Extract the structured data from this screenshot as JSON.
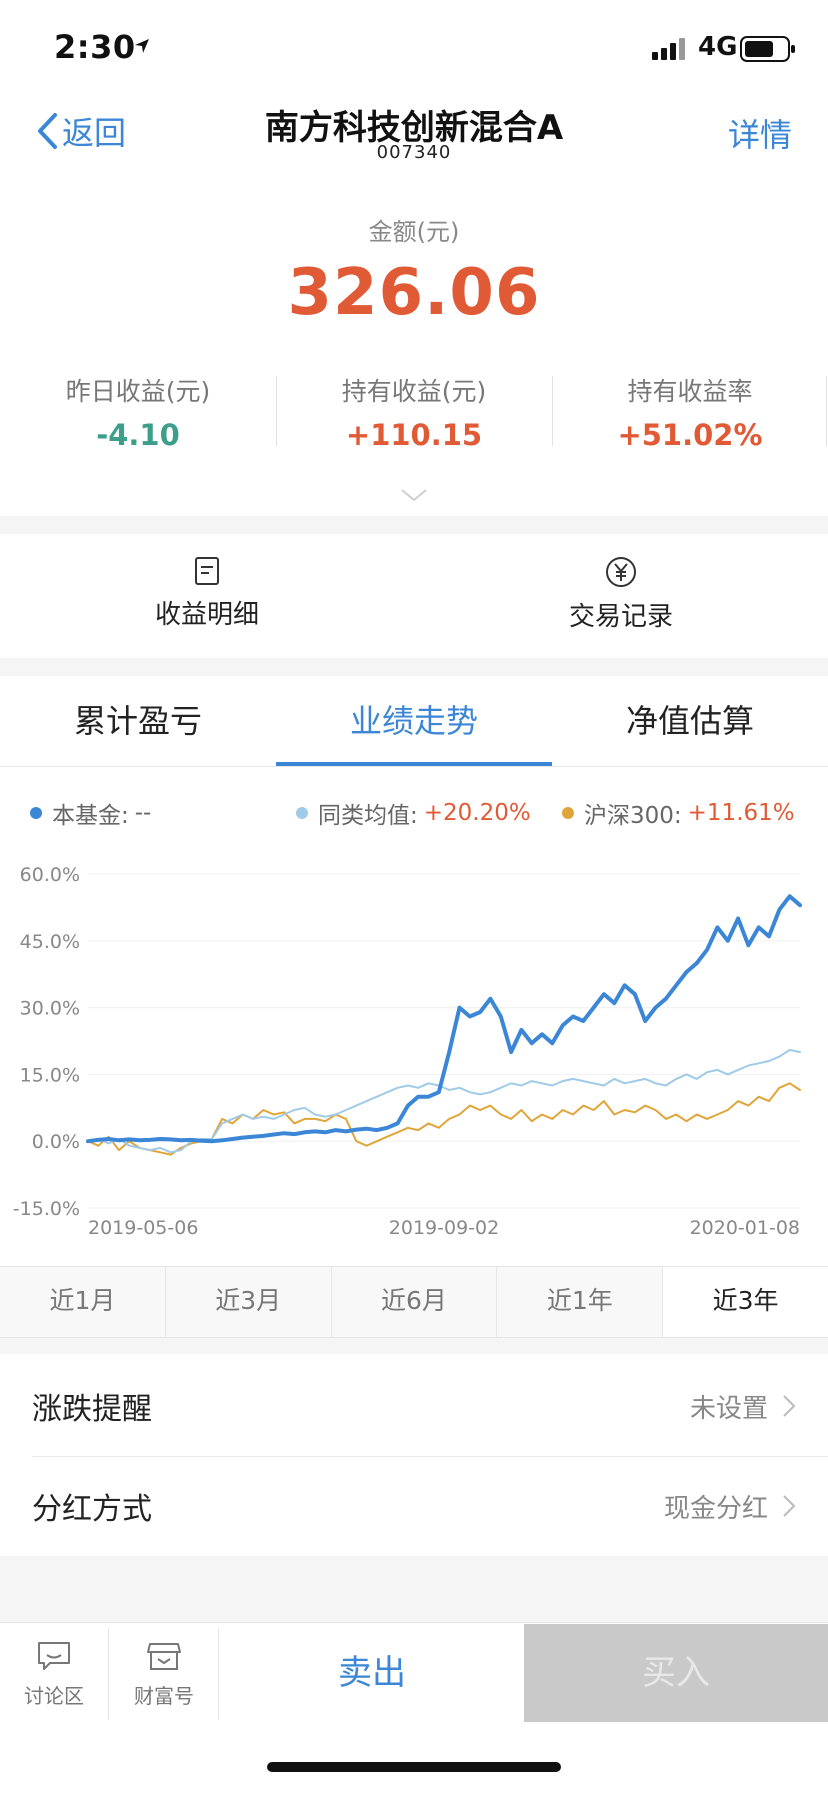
{
  "status_bar": {
    "time": "2:30",
    "network": "4G"
  },
  "nav": {
    "back_label": "返回",
    "title": "南方科技创新混合A",
    "code": "007340",
    "detail_label": "详情"
  },
  "summary": {
    "amount_label": "金额(元)",
    "amount": "326.06",
    "stats": [
      {
        "label": "昨日收益(元)",
        "value": "-4.10",
        "color": "#3d9e8a"
      },
      {
        "label": "持有收益(元)",
        "value": "+110.15",
        "color": "#e05a36"
      },
      {
        "label": "持有收益率",
        "value": "+51.02%",
        "color": "#e05a36"
      }
    ]
  },
  "actions": [
    {
      "label": "收益明细",
      "icon": "document-icon"
    },
    {
      "label": "交易记录",
      "icon": "yen-circle-icon"
    }
  ],
  "tabs": [
    {
      "label": "累计盈亏",
      "active": false
    },
    {
      "label": "业绩走势",
      "active": true
    },
    {
      "label": "净值估算",
      "active": false
    }
  ],
  "legend": [
    {
      "name": "本基金:",
      "value": "--",
      "color": "#3b86d6",
      "value_color": "#666666"
    },
    {
      "name": "同类均值:",
      "value": "+20.20%",
      "color": "#9fcbe8",
      "value_color": "#e05a36"
    },
    {
      "name": "沪深300:",
      "value": "+11.61%",
      "color": "#e0a53a",
      "value_color": "#e05a36"
    }
  ],
  "chart_data": {
    "type": "line",
    "y_ticks": [
      "60.0%",
      "45.0%",
      "30.0%",
      "15.0%",
      "0.0%",
      "-15.0%"
    ],
    "ylim": [
      -15,
      60
    ],
    "x_tick_labels": [
      "2019-05-06",
      "2019-09-02",
      "2020-01-08"
    ],
    "grid": true,
    "series": [
      {
        "name": "本基金",
        "color": "#3b86d6",
        "values": [
          0,
          0.3,
          0.5,
          0.2,
          0.4,
          0.2,
          0.3,
          0.5,
          0.4,
          0.2,
          0.3,
          0.1,
          0,
          0.2,
          0.5,
          0.8,
          1,
          1.2,
          1.5,
          1.8,
          1.6,
          2,
          2.2,
          2,
          2.5,
          2.2,
          2.6,
          2.8,
          2.5,
          3,
          4,
          8,
          10,
          10,
          11,
          20,
          30,
          28,
          29,
          32,
          28,
          20,
          25,
          22,
          24,
          22,
          26,
          28,
          27,
          30,
          33,
          31,
          35,
          33,
          27,
          30,
          32,
          35,
          38,
          40,
          43,
          48,
          45,
          50,
          44,
          48,
          46,
          52,
          55,
          53
        ]
      },
      {
        "name": "同类均值",
        "color": "#9fcbe8",
        "values": [
          0,
          0.5,
          -0.5,
          0.5,
          -1,
          -1.5,
          -2,
          -1.5,
          -2.5,
          -2,
          0,
          0.5,
          0.5,
          4,
          5,
          6,
          5,
          5.5,
          5,
          6,
          7,
          7.5,
          6,
          5.5,
          6,
          7,
          8,
          9,
          10,
          11,
          12,
          12.5,
          12,
          13,
          12.5,
          11.5,
          12,
          11,
          10.5,
          11,
          12,
          13,
          12.5,
          13.5,
          13,
          12.5,
          13.5,
          14,
          13.5,
          13,
          12.5,
          14,
          13,
          13.5,
          14,
          13,
          12.5,
          14,
          15,
          14,
          15.5,
          16,
          15,
          16,
          17,
          17.5,
          18,
          19,
          20.5,
          20
        ]
      },
      {
        "name": "沪深300",
        "color": "#e0a53a",
        "values": [
          0,
          -1,
          1,
          -2,
          0,
          -1.5,
          -2,
          -2.5,
          -3,
          -1.5,
          -0.5,
          0,
          0.5,
          5,
          4,
          6,
          5,
          7,
          6,
          6.5,
          4,
          5,
          5,
          4.5,
          6,
          5,
          0,
          -1,
          0,
          1,
          2,
          3,
          2.5,
          4,
          3,
          5,
          6,
          8,
          7,
          8,
          6,
          5,
          7,
          4.5,
          6,
          5,
          7,
          6,
          8,
          7,
          9,
          6,
          7,
          6.5,
          8,
          7,
          5,
          6,
          4.5,
          6,
          5,
          6,
          7,
          9,
          8,
          10,
          9,
          12,
          13,
          11.5
        ]
      }
    ]
  },
  "ranges": [
    {
      "label": "近1月",
      "active": false
    },
    {
      "label": "近3月",
      "active": false
    },
    {
      "label": "近6月",
      "active": false
    },
    {
      "label": "近1年",
      "active": false
    },
    {
      "label": "近3年",
      "active": true
    }
  ],
  "settings": [
    {
      "label": "涨跌提醒",
      "value": "未设置"
    },
    {
      "label": "分红方式",
      "value": "现金分红"
    }
  ],
  "bottom": {
    "discuss_label": "讨论区",
    "wealth_label": "财富号",
    "sell_label": "卖出",
    "buy_label": "买入"
  }
}
